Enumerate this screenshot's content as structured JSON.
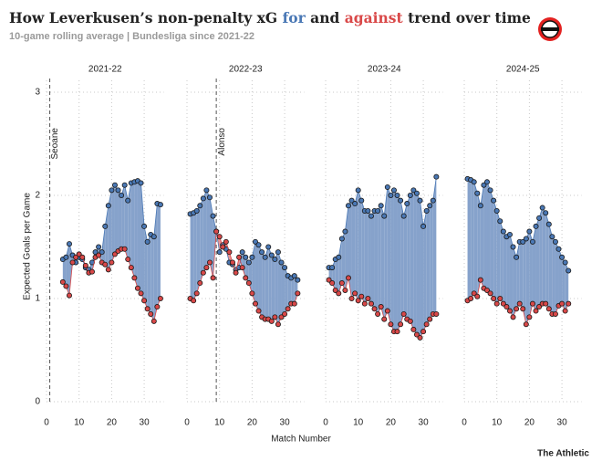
{
  "chart_data": {
    "type": "line",
    "title_parts": [
      "How Leverkusen’s non-penalty xG ",
      " and ",
      " trend over time"
    ],
    "subtitle": "10-game rolling average | Bundesliga since 2021-22",
    "ylabel": "Expected Goals per Game",
    "xlabel": "Match Number",
    "source": "The Athletic",
    "ylim": [
      0,
      3
    ],
    "yticks": [
      0,
      1,
      2,
      3
    ],
    "xlim": [
      0,
      36
    ],
    "xticks": [
      0,
      10,
      20,
      30
    ],
    "grid": true,
    "series": [
      {
        "name": "for",
        "color": "#4a78b5"
      },
      {
        "name": "against",
        "color": "#d94848"
      }
    ],
    "panels": [
      {
        "title": "2021-22",
        "annotation": {
          "x": 1,
          "label": "Seoane"
        },
        "x": [
          5,
          6,
          7,
          8,
          9,
          10,
          11,
          12,
          13,
          14,
          15,
          16,
          17,
          18,
          19,
          20,
          21,
          22,
          23,
          24,
          25,
          26,
          27,
          28,
          29,
          30,
          31,
          32,
          33,
          34,
          35
        ],
        "for": [
          1.38,
          1.4,
          1.53,
          1.42,
          1.35,
          1.4,
          1.38,
          1.3,
          1.28,
          1.35,
          1.45,
          1.5,
          1.45,
          1.7,
          1.9,
          2.05,
          2.1,
          2.05,
          2.0,
          2.1,
          1.95,
          2.12,
          2.13,
          2.14,
          2.12,
          1.7,
          1.55,
          1.62,
          1.6,
          1.92,
          1.91
        ],
        "against": [
          1.16,
          1.12,
          1.03,
          1.35,
          1.4,
          1.43,
          1.4,
          1.32,
          1.25,
          1.26,
          1.4,
          1.42,
          1.35,
          1.33,
          1.28,
          1.35,
          1.43,
          1.46,
          1.48,
          1.48,
          1.38,
          1.3,
          1.2,
          1.1,
          1.05,
          0.98,
          0.9,
          0.85,
          0.78,
          0.92,
          1.0
        ]
      },
      {
        "title": "2022-23",
        "annotation": {
          "x": 9,
          "label": "Alonso"
        },
        "x": [
          1,
          2,
          3,
          4,
          5,
          6,
          7,
          8,
          9,
          10,
          11,
          12,
          13,
          14,
          15,
          16,
          17,
          18,
          19,
          20,
          21,
          22,
          23,
          24,
          25,
          26,
          27,
          28,
          29,
          30,
          31,
          32,
          33,
          34
        ],
        "for": [
          1.82,
          1.83,
          1.85,
          1.9,
          1.97,
          2.05,
          1.98,
          1.8,
          1.65,
          1.45,
          1.52,
          1.48,
          1.35,
          1.33,
          1.28,
          1.3,
          1.45,
          1.4,
          1.35,
          1.4,
          1.55,
          1.52,
          1.45,
          1.4,
          1.5,
          1.42,
          1.38,
          1.45,
          1.35,
          1.3,
          1.22,
          1.2,
          1.22,
          1.18
        ],
        "against": [
          1.0,
          0.98,
          1.05,
          1.15,
          1.25,
          1.3,
          1.35,
          1.2,
          1.65,
          1.6,
          1.5,
          1.55,
          1.45,
          1.35,
          1.25,
          1.4,
          1.3,
          1.2,
          1.15,
          1.05,
          0.95,
          0.88,
          0.82,
          0.8,
          0.8,
          0.78,
          0.82,
          0.75,
          0.82,
          0.85,
          0.9,
          0.95,
          0.95,
          1.05
        ]
      },
      {
        "title": "2023-24",
        "x": [
          1,
          2,
          3,
          4,
          5,
          6,
          7,
          8,
          9,
          10,
          11,
          12,
          13,
          14,
          15,
          16,
          17,
          18,
          19,
          20,
          21,
          22,
          23,
          24,
          25,
          26,
          27,
          28,
          29,
          30,
          31,
          32,
          33,
          34
        ],
        "for": [
          1.3,
          1.3,
          1.38,
          1.4,
          1.58,
          1.65,
          1.9,
          1.95,
          1.92,
          2.05,
          1.95,
          1.85,
          1.85,
          1.8,
          1.85,
          1.85,
          1.9,
          1.8,
          2.08,
          2.0,
          2.05,
          2.0,
          1.95,
          1.8,
          1.92,
          2.0,
          2.05,
          2.02,
          1.95,
          1.7,
          1.85,
          1.9,
          1.95,
          2.18
        ],
        "against": [
          1.18,
          1.15,
          1.08,
          1.05,
          1.15,
          1.08,
          1.2,
          1.0,
          1.05,
          0.98,
          1.02,
          0.95,
          1.0,
          0.95,
          0.9,
          0.85,
          0.92,
          0.8,
          0.88,
          0.75,
          0.68,
          0.68,
          0.75,
          0.85,
          0.8,
          0.78,
          0.7,
          0.65,
          0.62,
          0.68,
          0.75,
          0.8,
          0.85,
          0.85
        ]
      },
      {
        "title": "2024-25",
        "x": [
          1,
          2,
          3,
          4,
          5,
          6,
          7,
          8,
          9,
          10,
          11,
          12,
          13,
          14,
          15,
          16,
          17,
          18,
          19,
          20,
          21,
          22,
          23,
          24,
          25,
          26,
          27,
          28,
          29,
          30,
          31,
          32
        ],
        "for": [
          2.16,
          2.15,
          2.13,
          2.02,
          1.9,
          2.1,
          2.13,
          2.05,
          1.95,
          1.85,
          1.75,
          1.65,
          1.6,
          1.62,
          1.5,
          1.4,
          1.55,
          1.55,
          1.58,
          1.65,
          1.55,
          1.7,
          1.78,
          1.88,
          1.83,
          1.72,
          1.6,
          1.55,
          1.48,
          1.4,
          1.35,
          1.27
        ],
        "against": [
          0.98,
          1.0,
          1.05,
          1.02,
          1.18,
          1.1,
          1.08,
          1.05,
          1.0,
          0.95,
          1.0,
          0.95,
          0.92,
          0.88,
          0.82,
          0.9,
          0.95,
          0.9,
          0.75,
          0.82,
          0.95,
          0.88,
          0.92,
          0.95,
          0.95,
          0.9,
          0.85,
          0.85,
          0.93,
          0.95,
          0.88,
          0.95
        ]
      }
    ]
  }
}
